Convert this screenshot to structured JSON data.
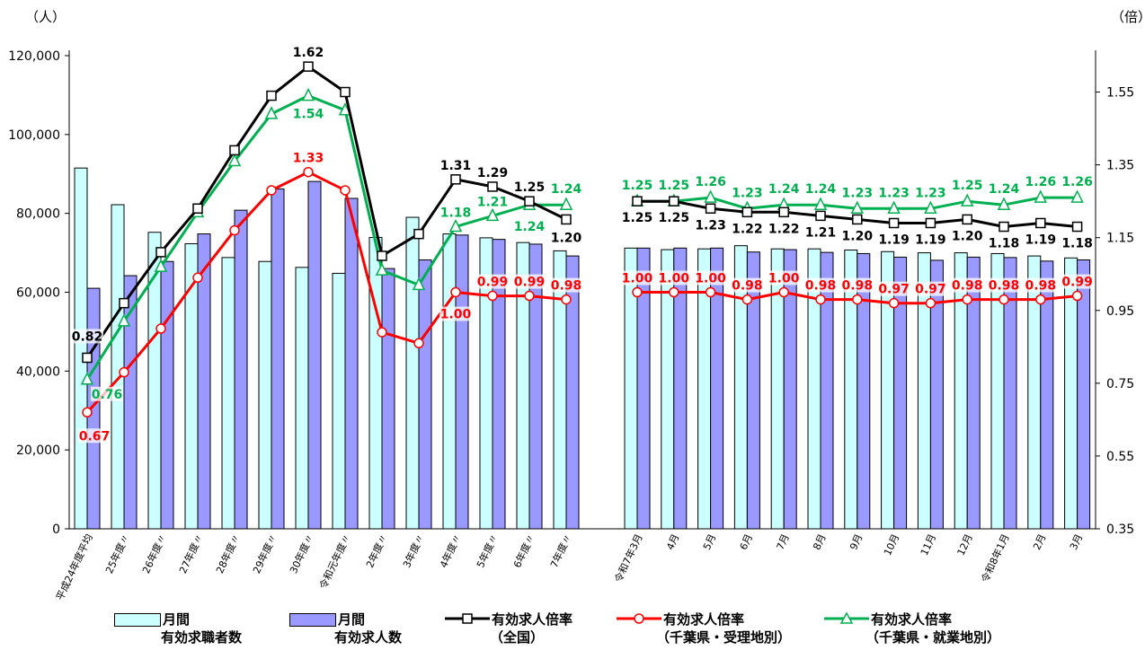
{
  "units": {
    "left": "（人）",
    "right": "（倍）"
  },
  "chart_data": {
    "type": "bar",
    "categories": [
      "平成24年度平均",
      "25年度〃",
      "26年度〃",
      "27年度〃",
      "28年度〃",
      "29年度〃",
      "30年度〃",
      "令和元年度〃",
      "2年度〃",
      "3年度〃",
      "4年度〃",
      "5年度〃",
      "6年度〃",
      "7年度〃",
      "令和7年3月",
      "4月",
      "5月",
      "6月",
      "7月",
      "8月",
      "9月",
      "10月",
      "11月",
      "12月",
      "令和8年1月",
      "2月",
      "3月"
    ],
    "gap_after_index": 13,
    "y_left": {
      "range": [
        0,
        120000
      ],
      "ticks": [
        "0",
        "20,000",
        "40,000",
        "60,000",
        "80,000",
        "100,000",
        "120,000"
      ]
    },
    "y_right": {
      "range": [
        0.35,
        1.65
      ],
      "ticks": [
        "0.35",
        "0.55",
        "0.75",
        "0.95",
        "1.15",
        "1.35",
        "1.55"
      ]
    },
    "series": [
      {
        "name": "月間有効求職者数",
        "kind": "bar",
        "color": "#ccffff",
        "values": [
          91500,
          82200,
          75200,
          72300,
          68800,
          67800,
          66300,
          64800,
          73900,
          79000,
          74800,
          73800,
          72600,
          70500,
          71200,
          70800,
          71000,
          71800,
          71000,
          71000,
          70700,
          70300,
          70000,
          70000,
          69800,
          69200,
          68700
        ]
      },
      {
        "name": "月間有効求人数",
        "kind": "bar",
        "color": "#9999ff",
        "values": [
          61000,
          64200,
          67800,
          74800,
          80800,
          86200,
          88100,
          83800,
          66000,
          68200,
          74500,
          73400,
          72200,
          69200,
          71200,
          71200,
          71200,
          70200,
          70800,
          70100,
          69800,
          68900,
          68100,
          68900,
          68800,
          67900,
          68200
        ]
      },
      {
        "name": "有効求人倍率（全国）",
        "kind": "line",
        "color": "#000000",
        "marker": "square",
        "values": [
          0.82,
          0.97,
          1.11,
          1.23,
          1.39,
          1.54,
          1.62,
          1.55,
          1.1,
          1.16,
          1.31,
          1.29,
          1.25,
          1.2,
          1.25,
          1.25,
          1.23,
          1.22,
          1.22,
          1.21,
          1.2,
          1.19,
          1.19,
          1.2,
          1.18,
          1.19,
          1.18
        ]
      },
      {
        "name": "有効求人倍率（千葉県・受理地別）",
        "kind": "line",
        "color": "#ff0000",
        "marker": "circle",
        "values": [
          0.67,
          0.78,
          0.9,
          1.04,
          1.17,
          1.28,
          1.33,
          1.28,
          0.89,
          0.86,
          1.0,
          0.99,
          0.99,
          0.98,
          1.0,
          1.0,
          1.0,
          0.98,
          1.0,
          0.98,
          0.98,
          0.97,
          0.97,
          0.98,
          0.98,
          0.98,
          0.99
        ]
      },
      {
        "name": "有効求人倍率（千葉県・就業地別）",
        "kind": "line",
        "color": "#00b050",
        "marker": "triangle",
        "values": [
          0.76,
          0.92,
          1.07,
          1.22,
          1.36,
          1.49,
          1.54,
          1.5,
          1.06,
          1.02,
          1.18,
          1.21,
          1.24,
          1.24,
          1.25,
          1.25,
          1.26,
          1.23,
          1.24,
          1.24,
          1.23,
          1.23,
          1.23,
          1.25,
          1.24,
          1.26,
          1.26
        ]
      }
    ],
    "labels": {
      "national": [
        {
          "i": 0,
          "text": "0.82"
        },
        {
          "i": 6,
          "text": "1.62"
        },
        {
          "i": 10,
          "text": "1.31"
        },
        {
          "i": 11,
          "text": "1.29"
        },
        {
          "i": 12,
          "text": "1.25"
        },
        {
          "i": 13,
          "text": "1.20"
        },
        {
          "i": 14,
          "text": "1.25"
        },
        {
          "i": 15,
          "text": "1.25"
        },
        {
          "i": 16,
          "text": "1.23"
        },
        {
          "i": 17,
          "text": "1.22"
        },
        {
          "i": 18,
          "text": "1.22"
        },
        {
          "i": 19,
          "text": "1.21"
        },
        {
          "i": 20,
          "text": "1.20"
        },
        {
          "i": 21,
          "text": "1.19"
        },
        {
          "i": 22,
          "text": "1.19"
        },
        {
          "i": 23,
          "text": "1.20"
        },
        {
          "i": 24,
          "text": "1.18"
        },
        {
          "i": 25,
          "text": "1.19"
        },
        {
          "i": 26,
          "text": "1.18"
        }
      ],
      "chiba_accept": [
        {
          "i": 0,
          "text": "0.67"
        },
        {
          "i": 6,
          "text": "1.33"
        },
        {
          "i": 10,
          "text": "1.00"
        },
        {
          "i": 11,
          "text": "0.99"
        },
        {
          "i": 12,
          "text": "0.99"
        },
        {
          "i": 13,
          "text": "0.98"
        },
        {
          "i": 14,
          "text": "1.00"
        },
        {
          "i": 15,
          "text": "1.00"
        },
        {
          "i": 16,
          "text": "1.00"
        },
        {
          "i": 17,
          "text": "0.98"
        },
        {
          "i": 18,
          "text": "1.00"
        },
        {
          "i": 19,
          "text": "0.98"
        },
        {
          "i": 20,
          "text": "0.98"
        },
        {
          "i": 21,
          "text": "0.97"
        },
        {
          "i": 22,
          "text": "0.97"
        },
        {
          "i": 23,
          "text": "0.98"
        },
        {
          "i": 24,
          "text": "0.98"
        },
        {
          "i": 25,
          "text": "0.98"
        },
        {
          "i": 26,
          "text": "0.99"
        }
      ],
      "chiba_work": [
        {
          "i": 0,
          "text": "0.76"
        },
        {
          "i": 6,
          "text": "1.54"
        },
        {
          "i": 10,
          "text": "1.18"
        },
        {
          "i": 11,
          "text": "1.21"
        },
        {
          "i": 12,
          "text": "1.24"
        },
        {
          "i": 13,
          "text": "1.24"
        },
        {
          "i": 14,
          "text": "1.25"
        },
        {
          "i": 15,
          "text": "1.25"
        },
        {
          "i": 16,
          "text": "1.26"
        },
        {
          "i": 17,
          "text": "1.23"
        },
        {
          "i": 18,
          "text": "1.24"
        },
        {
          "i": 19,
          "text": "1.24"
        },
        {
          "i": 20,
          "text": "1.23"
        },
        {
          "i": 21,
          "text": "1.23"
        },
        {
          "i": 22,
          "text": "1.23"
        },
        {
          "i": 23,
          "text": "1.25"
        },
        {
          "i": 24,
          "text": "1.24"
        },
        {
          "i": 25,
          "text": "1.26"
        },
        {
          "i": 26,
          "text": "1.26"
        }
      ]
    }
  },
  "legend": [
    {
      "line1": "月間",
      "line2": "有効求職者数"
    },
    {
      "line1": "月間",
      "line2": "有効求人数"
    },
    {
      "line1": "有効求人倍率",
      "line2": "（全国）"
    },
    {
      "line1": "有効求人倍率",
      "line2": "（千葉県・受理地別）"
    },
    {
      "line1": "有効求人倍率",
      "line2": "（千葉県・就業地別）"
    }
  ]
}
